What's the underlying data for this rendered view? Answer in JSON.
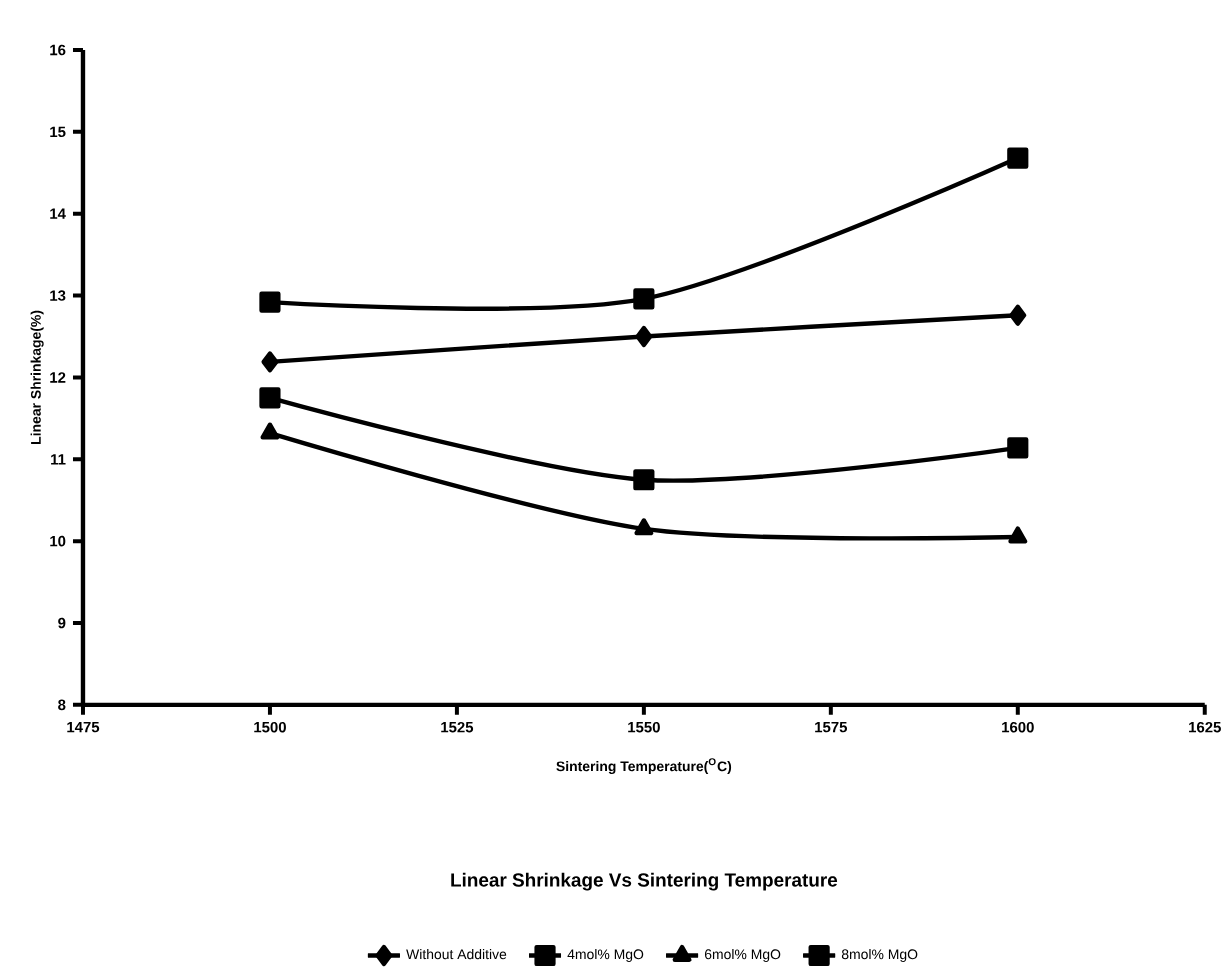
{
  "chart_data": {
    "type": "line",
    "title": "Linear Shrinkage Vs Sintering Temperature",
    "xlabel": "Sintering Temperature($^{O}$C)",
    "ylabel": "Linear Shrinkage(%)",
    "x": [
      1500,
      1550,
      1600
    ],
    "series": [
      {
        "name": "Without Additive",
        "color": "#000000",
        "marker": "diamond",
        "values": [
          12.19,
          12.5,
          12.76
        ]
      },
      {
        "name": "4mol% MgO",
        "color": "#000000",
        "marker": "square",
        "values": [
          11.75,
          10.75,
          11.14
        ]
      },
      {
        "name": "6mol% MgO",
        "color": "#000000",
        "marker": "triangle",
        "values": [
          11.32,
          10.15,
          10.05
        ]
      },
      {
        "name": "8mol% MgO",
        "color": "#000000",
        "marker": "square",
        "values": [
          12.92,
          12.96,
          14.68
        ]
      }
    ],
    "xlim": [
      1475,
      1625
    ],
    "xticks": [
      1475,
      1500,
      1525,
      1550,
      1575,
      1600,
      1625
    ],
    "ylim": [
      8,
      16
    ],
    "yticks": [
      8,
      9,
      10,
      11,
      12,
      13,
      14,
      15,
      16
    ],
    "legend": "bottom",
    "line_style": "solid"
  }
}
